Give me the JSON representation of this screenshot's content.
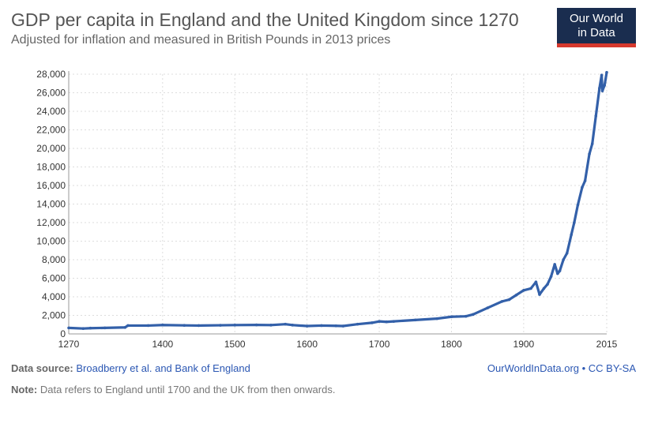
{
  "header": {
    "title": "GDP per capita in England and the United Kingdom since 1270",
    "subtitle": "Adjusted for inflation and measured in British Pounds in 2013 prices",
    "logo_line1": "Our World",
    "logo_line2": "in Data"
  },
  "footer": {
    "source_label": "Data source:",
    "source_text": "Broadberry et al. and Bank of England",
    "site": "OurWorldInData.org • CC BY-SA",
    "note_label": "Note:",
    "note_text": "Data refers to England until 1700 and the UK from then onwards."
  },
  "chart_data": {
    "type": "line",
    "title": "GDP per capita in England and the United Kingdom since 1270",
    "xlabel": "",
    "ylabel": "",
    "xlim": [
      1270,
      2015
    ],
    "ylim": [
      0,
      28000
    ],
    "grid": true,
    "color": "#3360a9",
    "xticks": [
      1270,
      1400,
      1500,
      1600,
      1700,
      1800,
      1900,
      2015
    ],
    "yticks": [
      0,
      2000,
      4000,
      6000,
      8000,
      10000,
      12000,
      14000,
      16000,
      18000,
      20000,
      22000,
      24000,
      26000,
      28000
    ],
    "series": [
      {
        "x": [
          1270,
          1290,
          1300,
          1320,
          1348,
          1352,
          1380,
          1400,
          1430,
          1450,
          1480,
          1500,
          1530,
          1550,
          1570,
          1580,
          1600,
          1620,
          1640,
          1650,
          1670,
          1690,
          1700,
          1710,
          1720,
          1750,
          1780,
          1800,
          1820,
          1830,
          1850,
          1870,
          1880,
          1890,
          1900,
          1910,
          1917,
          1922,
          1928,
          1933,
          1938,
          1943,
          1947,
          1950,
          1955,
          1960,
          1966,
          1970,
          1975,
          1981,
          1985,
          1991,
          1995,
          2000,
          2005,
          2008,
          2009,
          2012,
          2015
        ],
        "y": [
          650,
          580,
          620,
          650,
          700,
          900,
          900,
          960,
          920,
          900,
          930,
          950,
          970,
          950,
          1050,
          950,
          850,
          900,
          870,
          850,
          1050,
          1200,
          1350,
          1300,
          1350,
          1500,
          1650,
          1850,
          1900,
          2100,
          2800,
          3500,
          3700,
          4200,
          4700,
          4900,
          5600,
          4250,
          4900,
          5350,
          6200,
          7500,
          6500,
          6800,
          8000,
          8700,
          10700,
          12000,
          13900,
          15800,
          16500,
          19400,
          20500,
          23500,
          26500,
          27900,
          26200,
          26800,
          28200
        ]
      }
    ]
  }
}
